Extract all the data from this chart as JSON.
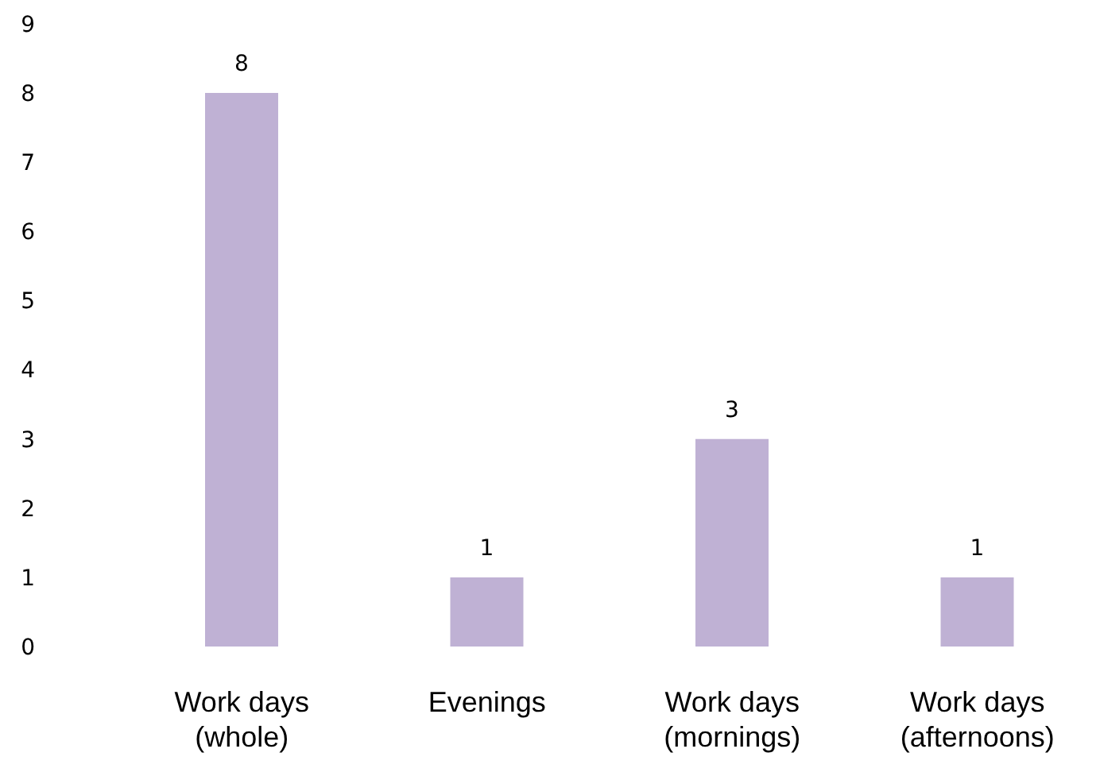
{
  "chart_data": {
    "type": "bar",
    "categories": [
      "Work days (whole)",
      "Evenings",
      "Work days (mornings)",
      "Work days (afternoons)"
    ],
    "values": [
      8,
      1,
      3,
      1
    ],
    "color": "#bfb1d4",
    "ylim": [
      0,
      9
    ],
    "yticks": [
      0,
      1,
      2,
      3,
      4,
      5,
      6,
      7,
      8,
      9
    ],
    "data_labels": true
  }
}
